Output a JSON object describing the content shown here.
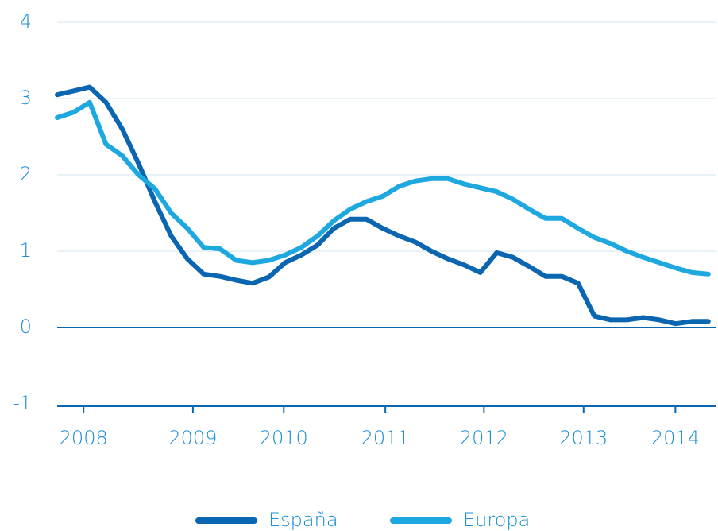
{
  "chart_data": {
    "type": "line",
    "x": [
      2008.0,
      2008.167,
      2008.333,
      2008.5,
      2008.667,
      2008.833,
      2009.0,
      2009.167,
      2009.333,
      2009.5,
      2009.667,
      2009.833,
      2010.0,
      2010.167,
      2010.333,
      2010.5,
      2010.667,
      2010.833,
      2011.0,
      2011.167,
      2011.333,
      2011.5,
      2011.667,
      2011.833,
      2012.0,
      2012.167,
      2012.333,
      2012.5,
      2012.667,
      2012.833,
      2013.0,
      2013.167,
      2013.333,
      2013.5,
      2013.667,
      2013.833,
      2014.0,
      2014.167,
      2014.333,
      2014.5,
      2014.667
    ],
    "series": [
      {
        "name": "España",
        "color": "#0a66b0",
        "values": [
          3.05,
          3.1,
          3.15,
          2.95,
          2.6,
          2.15,
          1.65,
          1.2,
          0.9,
          0.7,
          0.67,
          0.62,
          0.58,
          0.66,
          0.85,
          0.95,
          1.08,
          1.3,
          1.42,
          1.42,
          1.3,
          1.2,
          1.12,
          1.0,
          0.9,
          0.82,
          0.72,
          0.98,
          0.92,
          0.8,
          0.67,
          0.67,
          0.58,
          0.15,
          0.1,
          0.1,
          0.13,
          0.1,
          0.05,
          0.08,
          0.08
        ]
      },
      {
        "name": "Europa",
        "color": "#1ea8e0",
        "values": [
          2.75,
          2.82,
          2.95,
          2.4,
          2.25,
          2.0,
          1.82,
          1.5,
          1.3,
          1.05,
          1.03,
          0.88,
          0.85,
          0.88,
          0.95,
          1.05,
          1.2,
          1.4,
          1.55,
          1.65,
          1.72,
          1.85,
          1.92,
          1.95,
          1.95,
          1.88,
          1.83,
          1.78,
          1.68,
          1.55,
          1.43,
          1.43,
          1.3,
          1.18,
          1.1,
          1.0,
          0.92,
          0.85,
          0.78,
          0.72,
          0.7
        ]
      }
    ],
    "xlim": [
      2008.0,
      2014.75
    ],
    "xticks": [
      {
        "value": 2008.27,
        "label": "2008"
      },
      {
        "value": 2009.39,
        "label": "2009"
      },
      {
        "value": 2010.32,
        "label": "2010"
      },
      {
        "value": 2011.36,
        "label": "2011"
      },
      {
        "value": 2012.37,
        "label": "2012"
      },
      {
        "value": 2013.39,
        "label": "2013"
      },
      {
        "value": 2014.33,
        "label": "2014"
      }
    ],
    "ylim": [
      -1,
      4
    ],
    "yticks": [
      -1,
      0,
      1,
      2,
      3,
      4
    ],
    "grid": true,
    "legend": "bottom"
  }
}
